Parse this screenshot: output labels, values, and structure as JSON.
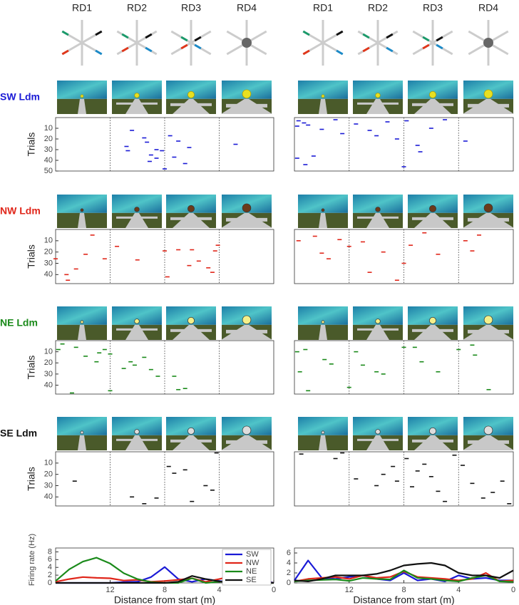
{
  "header": {
    "columns": [
      "RD1",
      "RD2",
      "RD3",
      "RD4"
    ]
  },
  "chart_data": [
    {
      "type": "raster",
      "title": "SW Ldm",
      "ylabel": "Trials",
      "color": "#1a1ad6",
      "xlim": [
        16,
        0
      ],
      "ylim": [
        0,
        50
      ],
      "yticks": [
        10,
        20,
        30,
        40,
        50
      ],
      "dividers": [
        12,
        8,
        4
      ],
      "x": [
        10.4,
        10.8,
        10.7,
        9.5,
        9.3,
        8.6,
        8.2,
        9.0,
        8.6,
        9.1,
        7.6,
        7.0,
        7.3,
        6.2,
        6.5,
        2.8,
        8.0
      ],
      "values": [
        12,
        27,
        31,
        19,
        23,
        30,
        31,
        35,
        38,
        41,
        17,
        22,
        37,
        28,
        43,
        25,
        48
      ]
    },
    {
      "type": "raster",
      "color": "#1a1ad6",
      "xlim": [
        16,
        0
      ],
      "ylim": [
        0,
        50
      ],
      "dividers": [
        12,
        8,
        4
      ],
      "x": [
        15.7,
        15.3,
        15.8,
        15,
        14,
        13,
        12.5,
        11.5,
        10.5,
        10,
        9.2,
        8.5,
        7.8,
        7,
        6,
        5,
        3.5,
        15.8,
        15.2,
        14.6,
        8,
        6.8
      ],
      "values": [
        3,
        5,
        8,
        7,
        11,
        2,
        15,
        6,
        12,
        17,
        4,
        20,
        3,
        26,
        10,
        2,
        22,
        38,
        44,
        36,
        46,
        32
      ]
    },
    {
      "type": "raster",
      "title": "NW Ldm",
      "ylabel": "Trials",
      "color": "#e0261a",
      "xlim": [
        16,
        0
      ],
      "ylim": [
        0,
        48
      ],
      "yticks": [
        10,
        20,
        30,
        40
      ],
      "dividers": [
        12,
        8,
        4
      ],
      "x": [
        16,
        15.2,
        15.1,
        14.5,
        13.8,
        13.3,
        12.4,
        11.5,
        10,
        8,
        7.8,
        7,
        6.2,
        6,
        5.5,
        4.8,
        4.3,
        4.1,
        4.5
      ],
      "values": [
        26,
        40,
        45,
        35,
        22,
        5,
        26,
        15,
        27,
        19,
        42,
        18,
        32,
        18,
        28,
        34,
        19,
        14,
        38
      ]
    },
    {
      "type": "raster",
      "color": "#e0261a",
      "xlim": [
        16,
        0
      ],
      "ylim": [
        0,
        48
      ],
      "dividers": [
        12,
        8,
        4
      ],
      "x": [
        15.7,
        14.5,
        14,
        13.5,
        12.7,
        12,
        11,
        10.5,
        9.5,
        8,
        7.5,
        6.5,
        5.5,
        3.5,
        3,
        8.5,
        2.5
      ],
      "values": [
        10,
        6,
        21,
        26,
        9,
        15,
        11,
        38,
        20,
        30,
        14,
        3,
        22,
        10,
        19,
        45,
        5
      ]
    },
    {
      "type": "raster",
      "title": "NE Ldm",
      "ylabel": "Trials",
      "color": "#1a8a1a",
      "xlim": [
        16,
        0
      ],
      "ylim": [
        0,
        48
      ],
      "yticks": [
        10,
        20,
        30,
        40
      ],
      "dividers": [
        12,
        8,
        4
      ],
      "x": [
        15.8,
        15.5,
        14.5,
        13.8,
        13,
        12.8,
        12.4,
        12,
        11,
        10.5,
        10.2,
        9.5,
        9,
        8.5,
        7.3,
        7,
        6.5,
        14.8,
        12
      ],
      "values": [
        8,
        3,
        6,
        14,
        19,
        11,
        8,
        12,
        25,
        19,
        22,
        15,
        26,
        32,
        32,
        44,
        43,
        47,
        45
      ]
    },
    {
      "type": "raster",
      "color": "#1a8a1a",
      "xlim": [
        16,
        0
      ],
      "ylim": [
        0,
        48
      ],
      "dividers": [
        12,
        8,
        4
      ],
      "x": [
        15.8,
        15.2,
        15.6,
        15,
        13.8,
        13.3,
        12,
        11.5,
        11,
        10,
        9.5,
        8,
        7.2,
        6.7,
        5.5,
        4,
        2.8,
        1.8,
        3
      ],
      "values": [
        10,
        8,
        28,
        45,
        17,
        21,
        42,
        10,
        22,
        28,
        30,
        6,
        6,
        19,
        28,
        8,
        13,
        44,
        4
      ]
    },
    {
      "type": "raster",
      "title": "SE Ldm",
      "ylabel": "Trials",
      "color": "#111111",
      "xlim": [
        16,
        0
      ],
      "ylim": [
        0,
        48
      ],
      "yticks": [
        10,
        20,
        30,
        40
      ],
      "dividers": [
        12,
        8,
        4
      ],
      "x": [
        14.6,
        10.4,
        9.5,
        8.6,
        7.7,
        7.3,
        6.5,
        6,
        5,
        4.5,
        4.2
      ],
      "values": [
        26,
        40,
        46,
        41,
        13,
        19,
        16,
        44,
        30,
        34,
        1
      ]
    },
    {
      "type": "raster",
      "color": "#111111",
      "xlim": [
        16,
        0
      ],
      "ylim": [
        0,
        48
      ],
      "dividers": [
        12,
        8,
        4
      ],
      "x": [
        15.5,
        13,
        12.5,
        11.5,
        10,
        9.5,
        8.8,
        8.5,
        7.8,
        7.4,
        7,
        6.5,
        6,
        5.5,
        5,
        4.3,
        3.7,
        3,
        2.2,
        1.5,
        0.8,
        0.3
      ],
      "values": [
        2,
        6,
        1,
        24,
        30,
        20,
        13,
        26,
        6,
        31,
        17,
        11,
        22,
        35,
        44,
        3,
        12,
        28,
        41,
        36,
        26,
        46
      ]
    },
    {
      "type": "line",
      "ylabel": "Firing rate (Hz)",
      "xlabel": "Distance from start (m)",
      "xlim": [
        16,
        0
      ],
      "ylim": [
        0,
        9
      ],
      "xticks": [
        12,
        8,
        4,
        0
      ],
      "yticks": [
        0,
        2,
        4,
        6,
        8
      ],
      "legend": "upper right",
      "x": [
        16,
        15,
        14,
        13,
        12,
        11,
        10,
        9,
        8,
        7,
        6,
        5,
        4,
        3,
        2,
        1,
        0
      ],
      "series": [
        {
          "name": "SW",
          "color": "#1a1ad6",
          "values": [
            0,
            0,
            0,
            0,
            0,
            0.2,
            0.3,
            1.5,
            4.1,
            1,
            0.3,
            1,
            0.5,
            0.2,
            0,
            1,
            0
          ]
        },
        {
          "name": "NW",
          "color": "#e0261a",
          "values": [
            0.3,
            1,
            1.5,
            1.3,
            1.2,
            0.6,
            0.8,
            0.3,
            0.5,
            0.8,
            1.2,
            0.3,
            1,
            1.8,
            1,
            0.3,
            0
          ]
        },
        {
          "name": "NE",
          "color": "#1a8a1a",
          "values": [
            0.5,
            3.5,
            5.5,
            6.5,
            5,
            2.5,
            1,
            0.2,
            0,
            0,
            1.2,
            0,
            0.3,
            0.5,
            0,
            0,
            0
          ]
        },
        {
          "name": "SE",
          "color": "#111111",
          "values": [
            0,
            0,
            0,
            0,
            0,
            0,
            0,
            0,
            0,
            0.3,
            1.8,
            1,
            0.4,
            0,
            0,
            0,
            0
          ]
        }
      ]
    },
    {
      "type": "line",
      "xlabel": "Distance from start (m)",
      "xlim": [
        16,
        0
      ],
      "ylim": [
        0,
        7
      ],
      "xticks": [
        12,
        8,
        4,
        0
      ],
      "yticks": [
        0,
        2,
        4,
        6
      ],
      "x": [
        16,
        15,
        14,
        13,
        12,
        11,
        10,
        9,
        8,
        7,
        6,
        5,
        4,
        3,
        2,
        1,
        0
      ],
      "series": [
        {
          "color": "#1a1ad6",
          "values": [
            0.5,
            4.5,
            1,
            0.8,
            1.2,
            1.5,
            0.8,
            0.5,
            2,
            0.5,
            0.8,
            0.3,
            1.5,
            0.8,
            1,
            0.5,
            0.5
          ]
        },
        {
          "color": "#e0261a",
          "values": [
            0.3,
            0.8,
            1,
            1.2,
            0.8,
            1.5,
            1,
            1.2,
            2.3,
            1.2,
            1,
            0.8,
            0.5,
            0.8,
            2,
            0.3,
            0.5
          ]
        },
        {
          "color": "#1a8a1a",
          "values": [
            0.3,
            0.5,
            0.6,
            0.7,
            0.4,
            1,
            0.8,
            0.7,
            2.5,
            1,
            0.8,
            0.5,
            0.3,
            1,
            1.5,
            0.3,
            0.2
          ]
        },
        {
          "color": "#111111",
          "values": [
            0.5,
            0.3,
            0.8,
            1.5,
            1.5,
            1.5,
            1.8,
            2.5,
            3.5,
            3.8,
            4,
            3.5,
            2,
            1.5,
            1.5,
            1,
            2.5
          ]
        }
      ]
    }
  ]
}
